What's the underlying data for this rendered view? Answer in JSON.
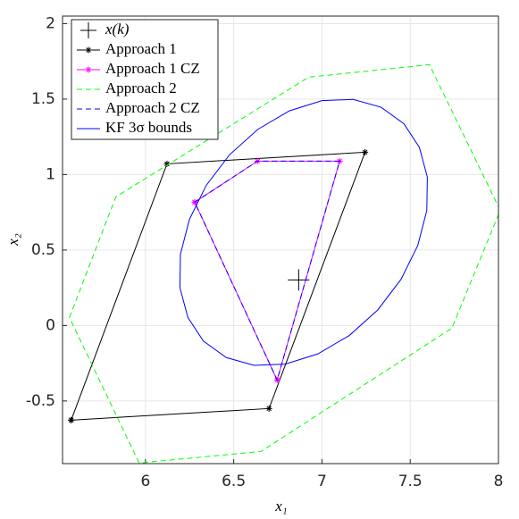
{
  "chart_data": {
    "type": "line",
    "xlabel": "x₁",
    "ylabel": "x₂",
    "xlim": [
      5.53,
      8.0
    ],
    "ylim": [
      -0.915,
      2.05
    ],
    "xticks": [
      6,
      6.5,
      7,
      7.5,
      8
    ],
    "yticks": [
      -0.5,
      0,
      0.5,
      1,
      1.5,
      2
    ],
    "grid": true,
    "legend_position": "upper-left",
    "series": [
      {
        "name": "x(k)",
        "color": "#000000",
        "line_style": "none",
        "marker": "+",
        "x": [
          6.868
        ],
        "y": [
          0.302
        ]
      },
      {
        "name": "Approach 1",
        "color": "#000000",
        "line_style": "solid",
        "marker": "*",
        "x": [
          5.579,
          6.7,
          7.244,
          6.122,
          5.579
        ],
        "y": [
          -0.627,
          -0.55,
          1.148,
          1.071,
          -0.627
        ]
      },
      {
        "name": "Approach 1 CZ",
        "color": "#ff00ff",
        "line_style": "solid",
        "marker": "*",
        "x": [
          6.279,
          6.635,
          7.1,
          6.746,
          6.279
        ],
        "y": [
          0.817,
          1.089,
          1.089,
          -0.361,
          0.817
        ]
      },
      {
        "name": "Approach 2",
        "color": "#00ff00",
        "line_style": "dashed",
        "marker": "none",
        "x": [
          5.569,
          5.832,
          6.924,
          7.609,
          8.01,
          7.736,
          6.655,
          5.964,
          5.569
        ],
        "y": [
          0.053,
          0.852,
          1.645,
          1.728,
          0.763,
          -0.018,
          -0.834,
          -0.911,
          0.053
        ]
      },
      {
        "name": "Approach 2 CZ",
        "color": "#0000ff",
        "line_style": "dashed",
        "marker": "none",
        "x": [
          6.279,
          6.635,
          7.1,
          6.746,
          6.279
        ],
        "y": [
          0.817,
          1.089,
          1.089,
          -0.361,
          0.817
        ]
      },
      {
        "name": "KF 3σ bounds",
        "color": "#0000ff",
        "line_style": "solid",
        "marker": "none",
        "x": [
          7.594,
          7.597,
          7.552,
          7.464,
          7.335,
          7.177,
          7.0,
          6.815,
          6.637,
          6.476,
          6.344,
          6.249,
          6.198,
          6.195,
          6.24,
          6.328,
          6.457,
          6.615,
          6.792,
          6.977,
          7.155,
          7.316,
          7.448,
          7.543,
          7.594
        ],
        "y": [
          0.762,
          0.983,
          1.18,
          1.337,
          1.446,
          1.498,
          1.49,
          1.422,
          1.3,
          1.131,
          0.928,
          0.703,
          0.472,
          0.251,
          0.054,
          -0.103,
          -0.212,
          -0.264,
          -0.256,
          -0.188,
          -0.066,
          0.103,
          0.306,
          0.531,
          0.762
        ]
      }
    ]
  }
}
